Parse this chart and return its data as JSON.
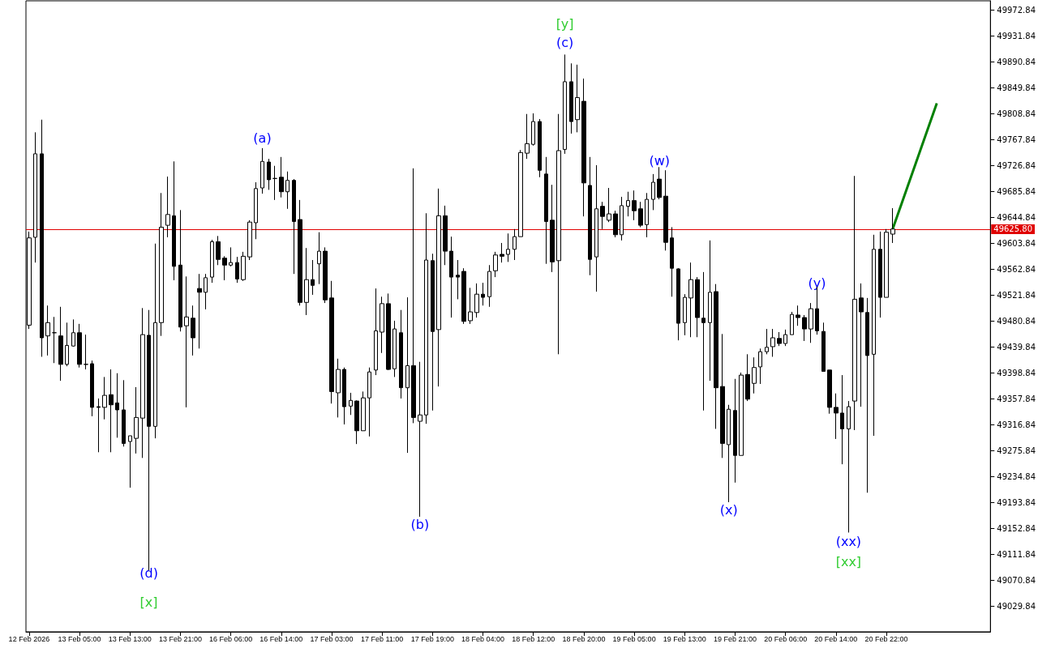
{
  "chart_data": {
    "type": "candlestick",
    "categories": [
      "12 Feb 2026",
      null,
      null,
      null,
      null,
      null,
      null,
      null,
      "13 Feb 05:00",
      null,
      null,
      null,
      null,
      null,
      null,
      null,
      "13 Feb 13:00",
      null,
      null,
      null,
      null,
      null,
      null,
      null,
      "13 Feb 21:00",
      null,
      null,
      null,
      null,
      null,
      null,
      null,
      "16 Feb 06:00",
      null,
      null,
      null,
      null,
      null,
      null,
      null,
      "16 Feb 14:00",
      null,
      null,
      null,
      null,
      null,
      null,
      null,
      "17 Feb 03:00",
      null,
      null,
      null,
      null,
      null,
      null,
      null,
      "17 Feb 11:00",
      null,
      null,
      null,
      null,
      null,
      null,
      null,
      "17 Feb 19:00",
      null,
      null,
      null,
      null,
      null,
      null,
      null,
      "18 Feb 04:00",
      null,
      null,
      null,
      null,
      null,
      null,
      null,
      "18 Feb 12:00",
      null,
      null,
      null,
      null,
      null,
      null,
      null,
      "18 Feb 20:00",
      null,
      null,
      null,
      null,
      null,
      null,
      null,
      "19 Feb 05:00",
      null,
      null,
      null,
      null,
      null,
      null,
      null,
      "19 Feb 13:00",
      null,
      null,
      null,
      null,
      null,
      null,
      null,
      "19 Feb 21:00",
      null,
      null,
      null,
      null,
      null,
      null,
      null,
      "20 Feb 06:00",
      null,
      null,
      null,
      null,
      null,
      null,
      null,
      "20 Feb 14:00",
      null,
      null,
      null,
      null,
      null,
      null,
      null,
      "20 Feb 22:00",
      null,
      null,
      null,
      null,
      null,
      null,
      null,
      null,
      null,
      null,
      null,
      null,
      null,
      null,
      null,
      null
    ],
    "ohlc": [
      [
        49474,
        49622,
        49468,
        49612
      ],
      [
        49613,
        49779,
        49573,
        49745
      ],
      [
        49745,
        49799,
        49424,
        49454
      ],
      [
        49457,
        49505,
        49426,
        49478
      ],
      [
        49462,
        49487,
        49414,
        49462
      ],
      [
        49457,
        49503,
        49386,
        49412
      ],
      [
        49412,
        49478,
        49409,
        49442
      ],
      [
        49441,
        49483,
        49440,
        49462
      ],
      [
        49462,
        49476,
        49407,
        49412
      ],
      [
        49412,
        49459,
        49404,
        49412
      ],
      [
        49413,
        49418,
        49330,
        49344
      ],
      [
        49345,
        49358,
        49273,
        49344
      ],
      [
        49344,
        49392,
        49325,
        49363
      ],
      [
        49364,
        49404,
        49273,
        49348
      ],
      [
        49351,
        49398,
        49296,
        49340
      ],
      [
        49340,
        49387,
        49282,
        49287
      ],
      [
        49290,
        49299,
        49217,
        49299
      ],
      [
        49295,
        49376,
        49271,
        49328
      ],
      [
        49327,
        49501,
        49264,
        49459
      ],
      [
        49458,
        49498,
        49086,
        49314
      ],
      [
        49314,
        49603,
        49295,
        49478
      ],
      [
        49478,
        49683,
        49457,
        49629
      ],
      [
        49632,
        49709,
        49613,
        49649
      ],
      [
        49647,
        49733,
        49545,
        49567
      ],
      [
        49569,
        49656,
        49464,
        49471
      ],
      [
        49473,
        49551,
        49344,
        49487
      ],
      [
        49485,
        49505,
        49426,
        49454
      ],
      [
        49532,
        49555,
        49437,
        49526
      ],
      [
        49526,
        49555,
        49499,
        49549
      ],
      [
        49550,
        49609,
        49541,
        49606
      ],
      [
        49606,
        49615,
        49569,
        49578
      ],
      [
        49580,
        49583,
        49545,
        49569
      ],
      [
        49569,
        49597,
        49567,
        49573
      ],
      [
        49573,
        49582,
        49541,
        49547
      ],
      [
        49546,
        49590,
        49544,
        49583
      ],
      [
        49582,
        49640,
        49577,
        49637
      ],
      [
        49636,
        49700,
        49610,
        49690
      ],
      [
        49691,
        49754,
        49682,
        49733
      ],
      [
        49732,
        49737,
        49688,
        49704
      ],
      [
        49706,
        49726,
        49672,
        49706
      ],
      [
        49708,
        49740,
        49676,
        49685
      ],
      [
        49685,
        49717,
        49658,
        49703
      ],
      [
        49703,
        49705,
        49555,
        49638
      ],
      [
        49641,
        49672,
        49505,
        49510
      ],
      [
        49510,
        49596,
        49490,
        49546
      ],
      [
        49546,
        49577,
        49522,
        49537
      ],
      [
        49571,
        49621,
        49539,
        49591
      ],
      [
        49591,
        49597,
        49509,
        49514
      ],
      [
        49517,
        49544,
        49350,
        49369
      ],
      [
        49367,
        49421,
        49328,
        49404
      ],
      [
        49404,
        49407,
        49317,
        49345
      ],
      [
        49346,
        49367,
        49332,
        49355
      ],
      [
        49354,
        49355,
        49286,
        49307
      ],
      [
        49307,
        49369,
        49307,
        49359
      ],
      [
        49359,
        49407,
        49298,
        49400
      ],
      [
        49403,
        49532,
        49395,
        49465
      ],
      [
        49463,
        49519,
        49430,
        49508
      ],
      [
        49508,
        49524,
        49403,
        49404
      ],
      [
        49405,
        49481,
        49392,
        49468
      ],
      [
        49462,
        49498,
        49358,
        49375
      ],
      [
        49375,
        49518,
        49272,
        49410
      ],
      [
        49410,
        49722,
        49319,
        49328
      ],
      [
        49322,
        49416,
        49171,
        49332
      ],
      [
        49332,
        49651,
        49318,
        49577
      ],
      [
        49576,
        49587,
        49339,
        49464
      ],
      [
        49467,
        49690,
        49377,
        49647
      ],
      [
        49647,
        49663,
        49569,
        49591
      ],
      [
        49591,
        49614,
        49486,
        49550
      ],
      [
        49553,
        49577,
        49515,
        49550
      ],
      [
        49559,
        49564,
        49476,
        49480
      ],
      [
        49481,
        49533,
        49476,
        49495
      ],
      [
        49494,
        49540,
        49486,
        49523
      ],
      [
        49523,
        49541,
        49505,
        49518
      ],
      [
        49519,
        49569,
        49503,
        49559
      ],
      [
        49560,
        49590,
        49550,
        49585
      ],
      [
        49586,
        49604,
        49573,
        49583
      ],
      [
        49586,
        49619,
        49574,
        49594
      ],
      [
        49594,
        49626,
        49577,
        49614
      ],
      [
        49614,
        49751,
        49614,
        49747
      ],
      [
        49746,
        49808,
        49737,
        49761
      ],
      [
        49760,
        49809,
        49758,
        49796
      ],
      [
        49796,
        49800,
        49708,
        49719
      ],
      [
        49713,
        49740,
        49571,
        49638
      ],
      [
        49640,
        49696,
        49558,
        49574
      ],
      [
        49576,
        49808,
        49428,
        49750
      ],
      [
        49752,
        49902,
        49745,
        49859
      ],
      [
        49859,
        49888,
        49777,
        49796
      ],
      [
        49799,
        49886,
        49779,
        49834
      ],
      [
        49828,
        49864,
        49646,
        49699
      ],
      [
        49695,
        49740,
        49553,
        49578
      ],
      [
        49582,
        49727,
        49527,
        49658
      ],
      [
        49662,
        49669,
        49626,
        49646
      ],
      [
        49640,
        49691,
        49637,
        49650
      ],
      [
        49650,
        49655,
        49613,
        49617
      ],
      [
        49617,
        49677,
        49608,
        49663
      ],
      [
        49662,
        49685,
        49646,
        49671
      ],
      [
        49671,
        49687,
        49640,
        49655
      ],
      [
        49658,
        49669,
        49629,
        49632
      ],
      [
        49633,
        49683,
        49613,
        49673
      ],
      [
        49673,
        49713,
        49656,
        49700
      ],
      [
        49705,
        49724,
        49673,
        49676
      ],
      [
        49678,
        49719,
        49592,
        49605
      ],
      [
        49612,
        49629,
        49519,
        49564
      ],
      [
        49563,
        49564,
        49450,
        49477
      ],
      [
        49478,
        49523,
        49458,
        49518
      ],
      [
        49517,
        49573,
        49455,
        49546
      ],
      [
        49546,
        49550,
        49455,
        49486
      ],
      [
        49485,
        49558,
        49339,
        49478
      ],
      [
        49478,
        49608,
        49386,
        49526
      ],
      [
        49527,
        49539,
        49310,
        49375
      ],
      [
        49377,
        49460,
        49264,
        49287
      ],
      [
        49285,
        49348,
        49194,
        49341
      ],
      [
        49339,
        49389,
        49225,
        49268
      ],
      [
        49268,
        49399,
        49268,
        49395
      ],
      [
        49396,
        49428,
        49354,
        49357
      ],
      [
        49382,
        49423,
        49366,
        49407
      ],
      [
        49408,
        49437,
        49381,
        49432
      ],
      [
        49432,
        49468,
        49428,
        49439
      ],
      [
        49440,
        49468,
        49424,
        49454
      ],
      [
        49453,
        49463,
        49441,
        49445
      ],
      [
        49445,
        49467,
        49441,
        49459
      ],
      [
        49459,
        49495,
        49459,
        49491
      ],
      [
        49490,
        49505,
        49473,
        49486
      ],
      [
        49486,
        49490,
        49449,
        49468
      ],
      [
        49468,
        49509,
        49446,
        49500
      ],
      [
        49500,
        49535,
        49459,
        49465
      ],
      [
        49464,
        49478,
        49401,
        49401
      ],
      [
        49403,
        49403,
        49334,
        49344
      ],
      [
        49344,
        49366,
        49294,
        49335
      ],
      [
        49335,
        49395,
        49254,
        49310
      ],
      [
        49310,
        49354,
        49146,
        49345
      ],
      [
        49354,
        49710,
        49308,
        49515
      ],
      [
        49517,
        49540,
        49345,
        49495
      ],
      [
        49494,
        49517,
        49209,
        49426
      ],
      [
        49428,
        49617,
        49299,
        49594
      ],
      [
        49594,
        49622,
        49486,
        49518
      ],
      [
        49518,
        49626,
        49518,
        49621
      ],
      [
        49618,
        49659,
        49604,
        49626
      ],
      null,
      null,
      null,
      null,
      null,
      null,
      null,
      null,
      null,
      null,
      null,
      null,
      null,
      null,
      null
    ],
    "series": [
      {
        "type": "line",
        "color": "#008000",
        "values": [
          null,
          null,
          null,
          null,
          null,
          null,
          null,
          null,
          null,
          null,
          null,
          null,
          null,
          null,
          null,
          null,
          null,
          null,
          null,
          null,
          null,
          null,
          null,
          null,
          null,
          null,
          null,
          null,
          null,
          null,
          null,
          null,
          null,
          null,
          null,
          null,
          null,
          null,
          null,
          null,
          null,
          null,
          null,
          null,
          null,
          null,
          null,
          null,
          null,
          null,
          null,
          null,
          null,
          null,
          null,
          null,
          null,
          null,
          null,
          null,
          null,
          null,
          null,
          null,
          null,
          null,
          null,
          null,
          null,
          null,
          null,
          null,
          null,
          null,
          null,
          null,
          null,
          null,
          null,
          null,
          null,
          null,
          null,
          null,
          null,
          null,
          null,
          null,
          null,
          null,
          null,
          null,
          null,
          null,
          null,
          null,
          null,
          null,
          null,
          null,
          null,
          null,
          null,
          null,
          null,
          null,
          null,
          null,
          null,
          null,
          null,
          null,
          null,
          null,
          null,
          null,
          null,
          null,
          null,
          null,
          null,
          null,
          null,
          null,
          null,
          null,
          null,
          null,
          null,
          null,
          null,
          null,
          null,
          null,
          null,
          null,
          null,
          49626,
          null,
          null,
          null,
          null,
          null,
          null,
          49825,
          null,
          null,
          null,
          null,
          null,
          null,
          null,
          null
        ]
      }
    ],
    "ylim": [
      48989,
      49987
    ],
    "yticks": [
      49029.84,
      49070.84,
      49111.84,
      49152.84,
      49193.84,
      49234.84,
      49275.84,
      49316.84,
      49357.84,
      49398.84,
      49439.84,
      49480.84,
      49521.84,
      49562.84,
      49603.84,
      49644.84,
      49685.84,
      49726.84,
      49767.84,
      49808.84,
      49849.84,
      49890.84,
      49931.84,
      49972.84
    ],
    "ref_lines": [
      {
        "axis": "y",
        "value": 49625.8,
        "label": "49625.80",
        "color": "#e00000"
      }
    ],
    "annotations": [
      "[y]",
      "(c)",
      "(a)",
      "(w)",
      "(y)",
      "(b)",
      "(x)",
      "(xx)",
      "[xx]",
      "(d)",
      "[x]"
    ]
  }
}
